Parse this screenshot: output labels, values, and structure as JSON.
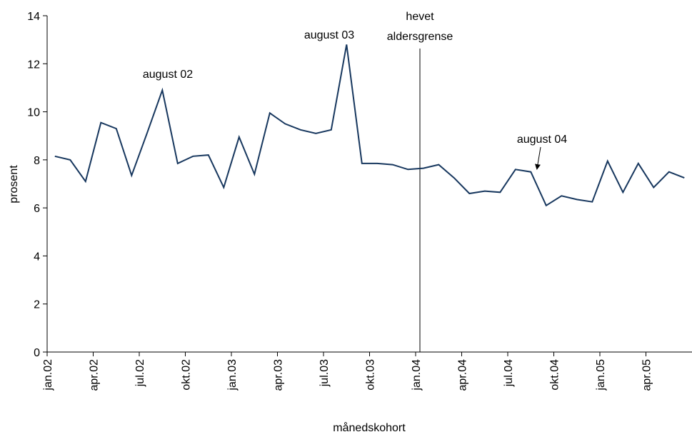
{
  "chart_data": {
    "type": "line",
    "y_label": "prosent",
    "x_label": "månedskohort",
    "annotations": [
      "august 02",
      "august 03",
      "hevet",
      "aldersgrense",
      "august 04"
    ],
    "categories": [
      "jan.02",
      null,
      null,
      "apr.02",
      null,
      null,
      "jul.02",
      null,
      null,
      "okt.02",
      null,
      null,
      "jan.03",
      null,
      null,
      "apr.03",
      null,
      null,
      "jul.03",
      null,
      null,
      "okt.03",
      null,
      null,
      "jan.04",
      null,
      null,
      "apr.04",
      null,
      null,
      "jul.04",
      null,
      null,
      "okt.04",
      null,
      null,
      "jan.05",
      null,
      null,
      "apr.05",
      null,
      null
    ],
    "series": [
      {
        "color": "#17375e",
        "values": [
          8.15,
          8.0,
          7.1,
          9.55,
          9.3,
          7.35,
          9.1,
          10.9,
          7.85,
          8.15,
          8.2,
          6.85,
          8.95,
          7.4,
          9.95,
          9.5,
          9.25,
          9.1,
          9.25,
          12.8,
          7.85,
          7.85,
          7.8,
          7.6,
          7.65,
          7.8,
          7.25,
          6.6,
          6.7,
          6.65,
          7.6,
          7.5,
          6.1,
          6.5,
          6.35,
          6.25,
          7.95,
          6.65,
          7.85,
          6.85,
          7.5,
          7.25
        ]
      }
    ],
    "ylim": [
      0,
      14
    ],
    "yticks": [
      0,
      2,
      4,
      6,
      8,
      10,
      12,
      14
    ],
    "grid": false
  }
}
